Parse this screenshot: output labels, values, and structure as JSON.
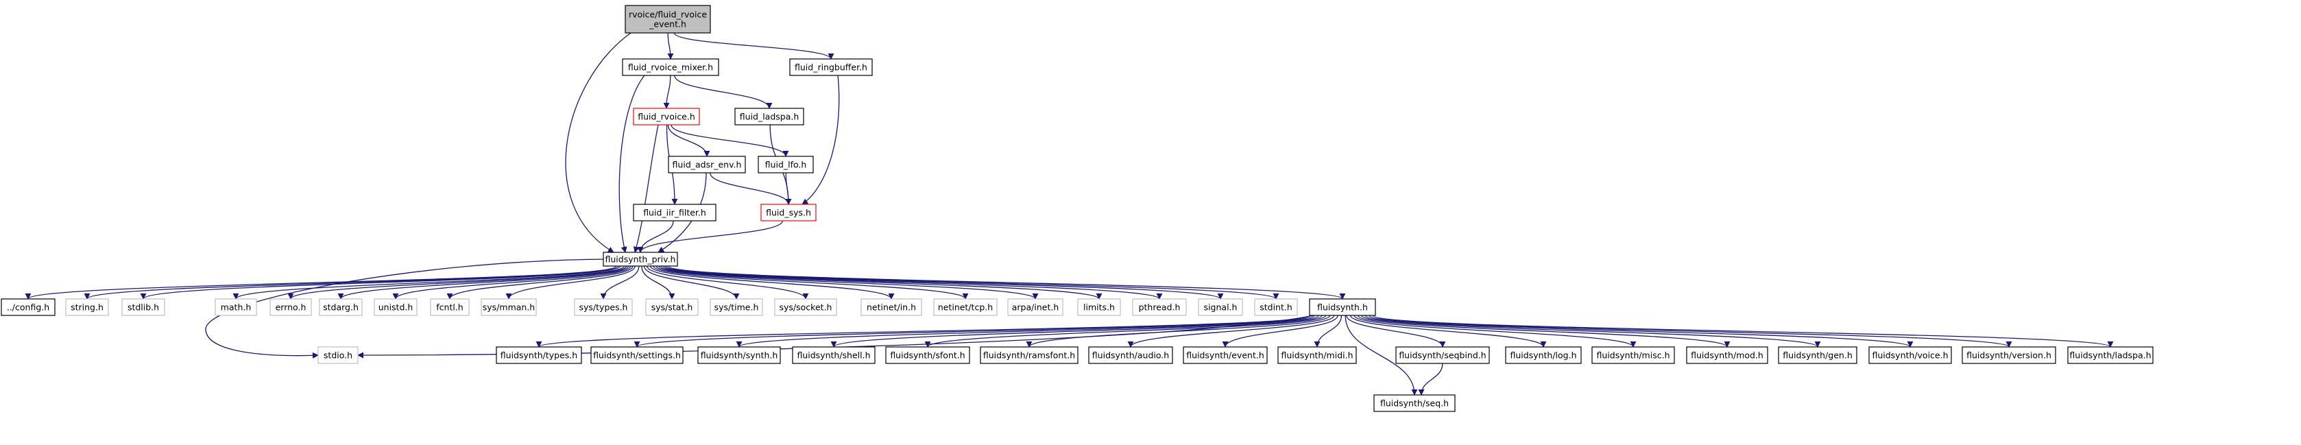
{
  "graph": {
    "colors": {
      "edge": "#191970",
      "border_default": "#000000",
      "border_missing": "#bfbfbf",
      "border_truncated": "#ff0000",
      "fill_root": "#bfbfbf",
      "fill_default": "#ffffff"
    },
    "nodes": [
      {
        "id": "root",
        "label": "rvoice/fluid_rvoice\n_event.h",
        "style": "root",
        "interactable": false
      },
      {
        "id": "mixer",
        "label": "fluid_rvoice_mixer.h",
        "style": "default",
        "interactable": true
      },
      {
        "id": "ringbuffer",
        "label": "fluid_ringbuffer.h",
        "style": "default",
        "interactable": true
      },
      {
        "id": "rvoice",
        "label": "fluid_rvoice.h",
        "style": "truncated",
        "interactable": true
      },
      {
        "id": "ladspa",
        "label": "fluid_ladspa.h",
        "style": "default",
        "interactable": true
      },
      {
        "id": "adsr",
        "label": "fluid_adsr_env.h",
        "style": "default",
        "interactable": true
      },
      {
        "id": "lfo",
        "label": "fluid_lfo.h",
        "style": "default",
        "interactable": true
      },
      {
        "id": "iir",
        "label": "fluid_iir_filter.h",
        "style": "default",
        "interactable": true
      },
      {
        "id": "sys",
        "label": "fluid_sys.h",
        "style": "truncated",
        "interactable": true
      },
      {
        "id": "priv",
        "label": "fluidsynth_priv.h",
        "style": "default",
        "interactable": true
      },
      {
        "id": "config",
        "label": "../config.h",
        "style": "default",
        "interactable": true
      },
      {
        "id": "string",
        "label": "string.h",
        "style": "missing",
        "interactable": false
      },
      {
        "id": "stdlib",
        "label": "stdlib.h",
        "style": "missing",
        "interactable": false
      },
      {
        "id": "math",
        "label": "math.h",
        "style": "missing",
        "interactable": false
      },
      {
        "id": "errno",
        "label": "errno.h",
        "style": "missing",
        "interactable": false
      },
      {
        "id": "stdarg",
        "label": "stdarg.h",
        "style": "missing",
        "interactable": false
      },
      {
        "id": "unistd",
        "label": "unistd.h",
        "style": "missing",
        "interactable": false
      },
      {
        "id": "fcntl",
        "label": "fcntl.h",
        "style": "missing",
        "interactable": false
      },
      {
        "id": "mman",
        "label": "sys/mman.h",
        "style": "missing",
        "interactable": false
      },
      {
        "id": "types",
        "label": "sys/types.h",
        "style": "missing",
        "interactable": false
      },
      {
        "id": "stat",
        "label": "sys/stat.h",
        "style": "missing",
        "interactable": false
      },
      {
        "id": "time",
        "label": "sys/time.h",
        "style": "missing",
        "interactable": false
      },
      {
        "id": "socket",
        "label": "sys/socket.h",
        "style": "missing",
        "interactable": false
      },
      {
        "id": "netin",
        "label": "netinet/in.h",
        "style": "missing",
        "interactable": false
      },
      {
        "id": "nettcp",
        "label": "netinet/tcp.h",
        "style": "missing",
        "interactable": false
      },
      {
        "id": "arpa",
        "label": "arpa/inet.h",
        "style": "missing",
        "interactable": false
      },
      {
        "id": "limits",
        "label": "limits.h",
        "style": "missing",
        "interactable": false
      },
      {
        "id": "pthread",
        "label": "pthread.h",
        "style": "missing",
        "interactable": false
      },
      {
        "id": "signal",
        "label": "signal.h",
        "style": "missing",
        "interactable": false
      },
      {
        "id": "stdint",
        "label": "stdint.h",
        "style": "missing",
        "interactable": false
      },
      {
        "id": "fluidsynth",
        "label": "fluidsynth.h",
        "style": "default",
        "interactable": true
      },
      {
        "id": "stdio",
        "label": "stdio.h",
        "style": "missing",
        "interactable": false
      },
      {
        "id": "fs_types",
        "label": "fluidsynth/types.h",
        "style": "default",
        "interactable": true
      },
      {
        "id": "fs_settings",
        "label": "fluidsynth/settings.h",
        "style": "default",
        "interactable": true
      },
      {
        "id": "fs_synth",
        "label": "fluidsynth/synth.h",
        "style": "default",
        "interactable": true
      },
      {
        "id": "fs_shell",
        "label": "fluidsynth/shell.h",
        "style": "default",
        "interactable": true
      },
      {
        "id": "fs_sfont",
        "label": "fluidsynth/sfont.h",
        "style": "default",
        "interactable": true
      },
      {
        "id": "fs_ramsfont",
        "label": "fluidsynth/ramsfont.h",
        "style": "default",
        "interactable": true
      },
      {
        "id": "fs_audio",
        "label": "fluidsynth/audio.h",
        "style": "default",
        "interactable": true
      },
      {
        "id": "fs_event",
        "label": "fluidsynth/event.h",
        "style": "default",
        "interactable": true
      },
      {
        "id": "fs_midi",
        "label": "fluidsynth/midi.h",
        "style": "default",
        "interactable": true
      },
      {
        "id": "fs_seqbind",
        "label": "fluidsynth/seqbind.h",
        "style": "default",
        "interactable": true
      },
      {
        "id": "fs_log",
        "label": "fluidsynth/log.h",
        "style": "default",
        "interactable": true
      },
      {
        "id": "fs_misc",
        "label": "fluidsynth/misc.h",
        "style": "default",
        "interactable": true
      },
      {
        "id": "fs_mod",
        "label": "fluidsynth/mod.h",
        "style": "default",
        "interactable": true
      },
      {
        "id": "fs_gen",
        "label": "fluidsynth/gen.h",
        "style": "default",
        "interactable": true
      },
      {
        "id": "fs_voice",
        "label": "fluidsynth/voice.h",
        "style": "default",
        "interactable": true
      },
      {
        "id": "fs_version",
        "label": "fluidsynth/version.h",
        "style": "default",
        "interactable": true
      },
      {
        "id": "fs_ladspa",
        "label": "fluidsynth/ladspa.h",
        "style": "default",
        "interactable": true
      },
      {
        "id": "fs_seq",
        "label": "fluidsynth/seq.h",
        "style": "default",
        "interactable": true
      }
    ],
    "edges": [
      [
        "root",
        "mixer"
      ],
      [
        "root",
        "ringbuffer"
      ],
      [
        "root",
        "priv"
      ],
      [
        "mixer",
        "rvoice"
      ],
      [
        "mixer",
        "ladspa"
      ],
      [
        "mixer",
        "priv"
      ],
      [
        "ringbuffer",
        "sys"
      ],
      [
        "rvoice",
        "adsr"
      ],
      [
        "rvoice",
        "lfo"
      ],
      [
        "rvoice",
        "iir"
      ],
      [
        "rvoice",
        "priv"
      ],
      [
        "ladspa",
        "sys"
      ],
      [
        "adsr",
        "sys"
      ],
      [
        "adsr",
        "priv"
      ],
      [
        "lfo",
        "sys"
      ],
      [
        "iir",
        "priv"
      ],
      [
        "sys",
        "priv"
      ],
      [
        "priv",
        "config"
      ],
      [
        "priv",
        "string"
      ],
      [
        "priv",
        "stdlib"
      ],
      [
        "priv",
        "math"
      ],
      [
        "priv",
        "errno"
      ],
      [
        "priv",
        "stdarg"
      ],
      [
        "priv",
        "unistd"
      ],
      [
        "priv",
        "fcntl"
      ],
      [
        "priv",
        "mman"
      ],
      [
        "priv",
        "types"
      ],
      [
        "priv",
        "stat"
      ],
      [
        "priv",
        "time"
      ],
      [
        "priv",
        "socket"
      ],
      [
        "priv",
        "netin"
      ],
      [
        "priv",
        "nettcp"
      ],
      [
        "priv",
        "arpa"
      ],
      [
        "priv",
        "limits"
      ],
      [
        "priv",
        "pthread"
      ],
      [
        "priv",
        "signal"
      ],
      [
        "priv",
        "stdint"
      ],
      [
        "priv",
        "fluidsynth"
      ],
      [
        "priv",
        "stdio"
      ],
      [
        "fluidsynth",
        "stdio"
      ],
      [
        "fluidsynth",
        "fs_types"
      ],
      [
        "fluidsynth",
        "fs_settings"
      ],
      [
        "fluidsynth",
        "fs_synth"
      ],
      [
        "fluidsynth",
        "fs_shell"
      ],
      [
        "fluidsynth",
        "fs_sfont"
      ],
      [
        "fluidsynth",
        "fs_ramsfont"
      ],
      [
        "fluidsynth",
        "fs_audio"
      ],
      [
        "fluidsynth",
        "fs_event"
      ],
      [
        "fluidsynth",
        "fs_midi"
      ],
      [
        "fluidsynth",
        "fs_seqbind"
      ],
      [
        "fluidsynth",
        "fs_log"
      ],
      [
        "fluidsynth",
        "fs_misc"
      ],
      [
        "fluidsynth",
        "fs_mod"
      ],
      [
        "fluidsynth",
        "fs_gen"
      ],
      [
        "fluidsynth",
        "fs_voice"
      ],
      [
        "fluidsynth",
        "fs_version"
      ],
      [
        "fluidsynth",
        "fs_ladspa"
      ],
      [
        "fluidsynth",
        "fs_seq"
      ],
      [
        "fs_seqbind",
        "fs_seq"
      ]
    ]
  }
}
